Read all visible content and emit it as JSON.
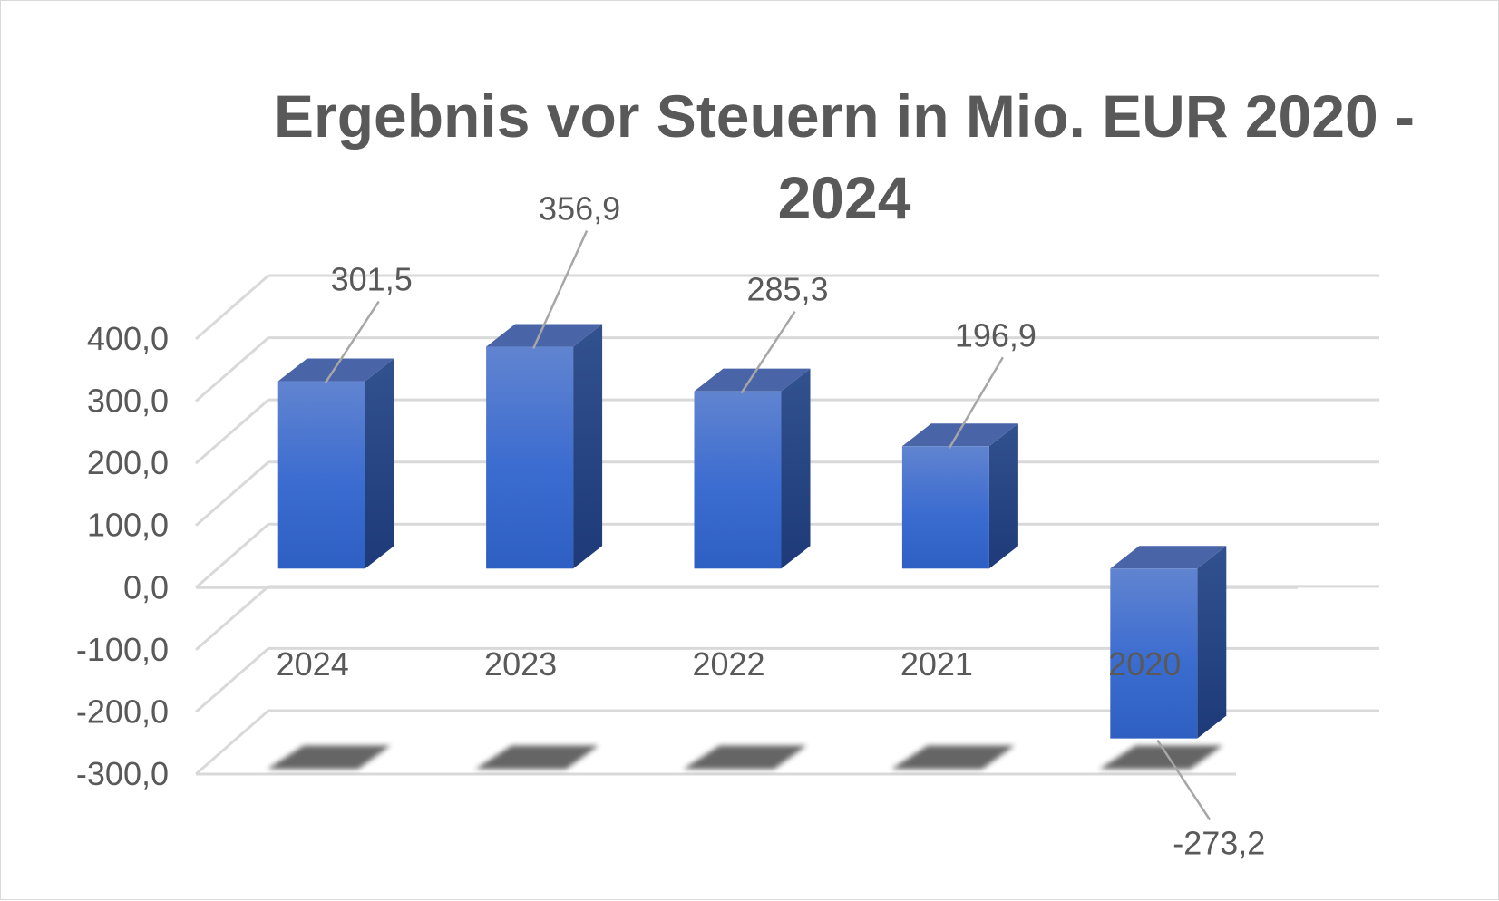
{
  "chart_data": {
    "type": "bar",
    "title": "Ergebnis vor Steuern in Mio. EUR 2020 - 2024",
    "categories": [
      "2024",
      "2023",
      "2022",
      "2021",
      "2020"
    ],
    "values": [
      301.5,
      356.9,
      285.3,
      196.9,
      -273.2
    ],
    "data_labels": [
      "301,5",
      "356,9",
      "285,3",
      "196,9",
      "-273,2"
    ],
    "yticks": [
      400,
      300,
      200,
      100,
      0,
      -100,
      -200,
      -300
    ],
    "ytick_labels": [
      "400,0",
      "300,0",
      "200,0",
      "100,0",
      "0,0",
      "-100,0",
      "-200,0",
      "-300,0"
    ],
    "ylim": [
      -300,
      400
    ],
    "style": "3d-column",
    "grid": true,
    "legend": false,
    "bar_color": "#3f6fd0"
  }
}
